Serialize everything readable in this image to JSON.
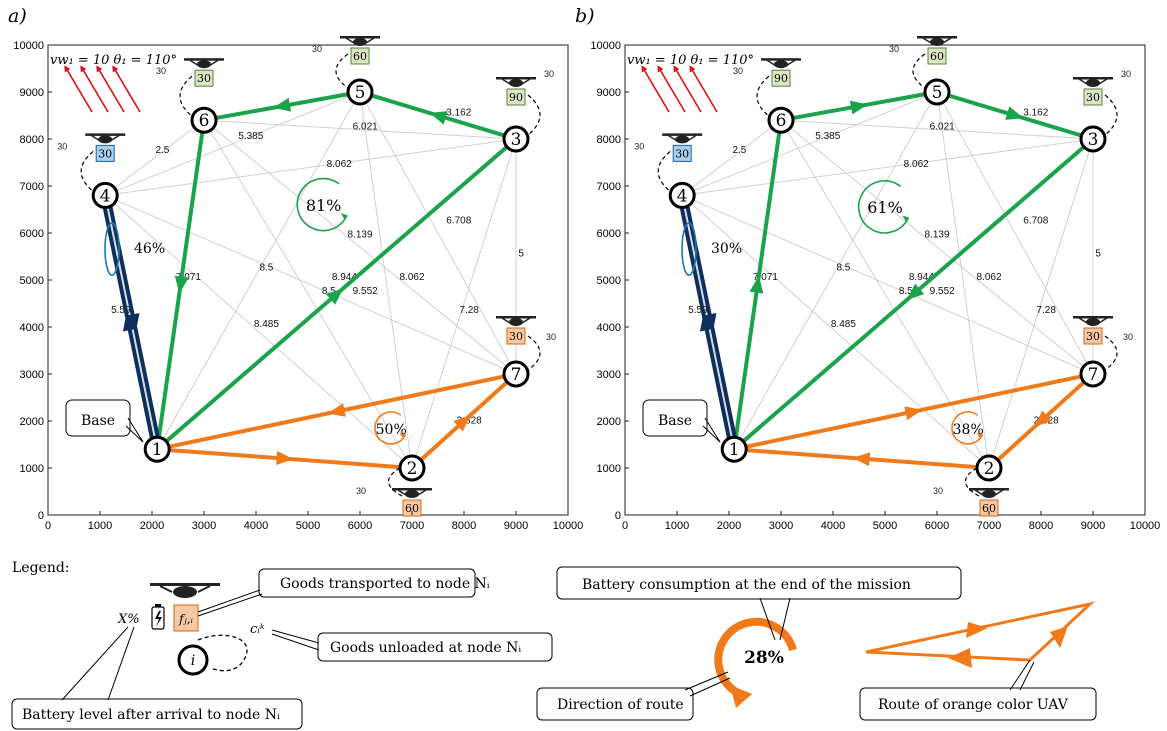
{
  "panels": [
    {
      "label": "a)",
      "wind": "vw₁ = 10  θ₁ = 110°",
      "base_label": "Base",
      "cycles": [
        {
          "text": "81%",
          "color": "#1aa34a",
          "node_ref": [
            5300,
            6600
          ]
        },
        {
          "text": "46%",
          "color": "#1f77b4",
          "node_ref": [
            1500,
            5700
          ]
        },
        {
          "text": "50%",
          "color": "#f07a1a",
          "node_ref": [
            6600,
            1850
          ]
        }
      ],
      "boxes": [
        {
          "node": 6,
          "value": "30",
          "color": "#d9e8c4"
        },
        {
          "node": 5,
          "value": "60",
          "color": "#d9e8c4"
        },
        {
          "node": 3,
          "value": "90",
          "color": "#d9e8c4"
        },
        {
          "node": 4,
          "value": "30",
          "color": "#a9d0ef"
        },
        {
          "node": 7,
          "value": "30",
          "color": "#f8c8a4"
        },
        {
          "node": 2,
          "value": "60",
          "color": "#f8c8a4"
        }
      ],
      "routes": [
        {
          "color": "#1aa34a",
          "path": [
            1,
            3,
            5,
            6,
            1
          ]
        },
        {
          "color": "#0d2f5e",
          "path": [
            1,
            4,
            1
          ]
        },
        {
          "color": "#f07a1a",
          "path": [
            1,
            2,
            7,
            1
          ]
        }
      ]
    },
    {
      "label": "b)",
      "wind": "vw₁ = 10  θ₁ = 110°",
      "base_label": "Base",
      "cycles": [
        {
          "text": "61%",
          "color": "#1aa34a",
          "node_ref": [
            5000,
            6550
          ]
        },
        {
          "text": "30%",
          "color": "#1f77b4",
          "node_ref": [
            1500,
            5700
          ]
        },
        {
          "text": "38%",
          "color": "#f07a1a",
          "node_ref": [
            6600,
            1850
          ]
        }
      ],
      "boxes": [
        {
          "node": 6,
          "value": "90",
          "color": "#d9e8c4"
        },
        {
          "node": 5,
          "value": "60",
          "color": "#d9e8c4"
        },
        {
          "node": 3,
          "value": "30",
          "color": "#d9e8c4"
        },
        {
          "node": 4,
          "value": "30",
          "color": "#a9d0ef"
        },
        {
          "node": 7,
          "value": "30",
          "color": "#f8c8a4"
        },
        {
          "node": 2,
          "value": "60",
          "color": "#f8c8a4"
        }
      ],
      "routes": [
        {
          "color": "#1aa34a",
          "path": [
            1,
            6,
            5,
            3,
            1
          ]
        },
        {
          "color": "#0d2f5e",
          "path": [
            1,
            4,
            1
          ]
        },
        {
          "color": "#f07a1a",
          "path": [
            1,
            7,
            2,
            1
          ]
        }
      ]
    }
  ],
  "nodes": [
    {
      "id": 1,
      "label": "1",
      "x": 2100,
      "y": 1400
    },
    {
      "id": 2,
      "label": "2",
      "x": 7000,
      "y": 1000
    },
    {
      "id": 3,
      "label": "3",
      "x": 9000,
      "y": 8000
    },
    {
      "id": 4,
      "label": "4",
      "x": 1100,
      "y": 6800
    },
    {
      "id": 5,
      "label": "5",
      "x": 6000,
      "y": 9000
    },
    {
      "id": 6,
      "label": "6",
      "x": 3000,
      "y": 8400
    },
    {
      "id": 7,
      "label": "7",
      "x": 9000,
      "y": 3000
    }
  ],
  "unload_label": "30",
  "edge_labels": [
    {
      "text": "2.5",
      "x": 2200,
      "y": 7700
    },
    {
      "text": "5.385",
      "x": 3900,
      "y": 8000
    },
    {
      "text": "6.021",
      "x": 6100,
      "y": 8200
    },
    {
      "text": "3.162",
      "x": 7900,
      "y": 8500
    },
    {
      "text": "8.062",
      "x": 5600,
      "y": 7400
    },
    {
      "text": "7.071",
      "x": 2700,
      "y": 5000
    },
    {
      "text": "8.5",
      "x": 4200,
      "y": 5200
    },
    {
      "text": "8.139",
      "x": 6000,
      "y": 5900
    },
    {
      "text": "6.708",
      "x": 7900,
      "y": 6200
    },
    {
      "text": "8.944",
      "x": 5700,
      "y": 5000
    },
    {
      "text": "8.062",
      "x": 7000,
      "y": 5000
    },
    {
      "text": "8.5",
      "x": 5400,
      "y": 4700
    },
    {
      "text": "9.552",
      "x": 6100,
      "y": 4700
    },
    {
      "text": "5",
      "x": 9100,
      "y": 5500
    },
    {
      "text": "7.28",
      "x": 8100,
      "y": 4300
    },
    {
      "text": "5.59",
      "x": 1400,
      "y": 4300
    },
    {
      "text": "8.485",
      "x": 4200,
      "y": 4000
    },
    {
      "text": "2.828",
      "x": 8100,
      "y": 1950
    }
  ],
  "axis": {
    "ticks": [
      "0",
      "1000",
      "2000",
      "3000",
      "4000",
      "5000",
      "6000",
      "7000",
      "8000",
      "9000",
      "10000"
    ],
    "range": [
      0,
      10000
    ]
  },
  "legend": {
    "title": "Legend:",
    "goods_transported": "Goods transported to node  Nᵢ",
    "goods_unloaded": "Goods unloaded at node  Nᵢ",
    "battery_level": "Battery level after arrival to node  Nᵢ",
    "battery_consumption": "Battery consumption at the end of the mission",
    "direction": "Direction of route",
    "route_orange": "Route of orange color UAV",
    "pct": "X%",
    "box_text": "fⱼ,ᵢ",
    "unload_text": "cᵢᵏ",
    "node_text": "i",
    "cycle_value": "28%"
  }
}
